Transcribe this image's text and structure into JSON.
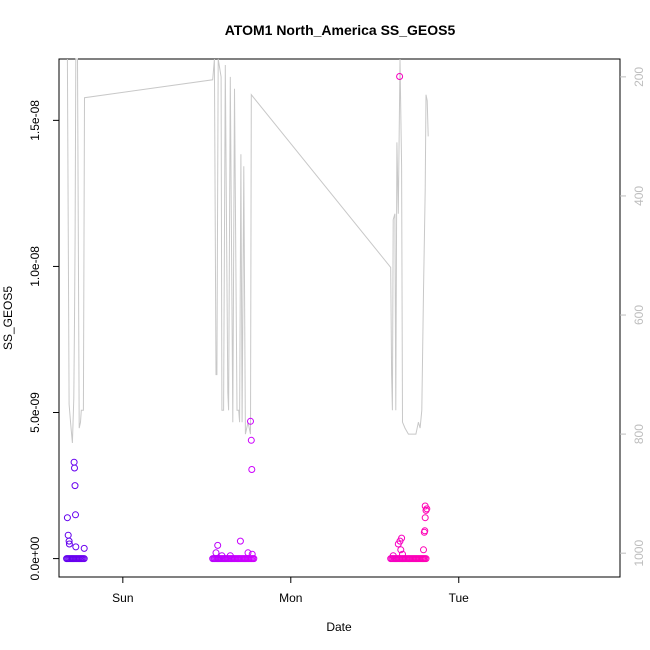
{
  "chart_data": {
    "type": "scatter",
    "title": "ATOM1 North_America SS_GEOS5",
    "xlabel": "Date",
    "ylabel": "SS_GEOS5",
    "x_tick_labels": [
      "Sun",
      "Mon",
      "Tue"
    ],
    "y_tick_labels": [
      "0.0e+00",
      "5.0e-09",
      "1.0e-08",
      "1.5e-08"
    ],
    "y_ticks": [
      0,
      5e-09,
      1e-08,
      1.5e-08
    ],
    "y2_tick_labels": [
      "200",
      "400",
      "600",
      "800",
      "1000"
    ],
    "y2_ticks": [
      200,
      400,
      600,
      800,
      1000
    ],
    "xlim": [
      -0.38,
      2.96
    ],
    "ylim": [
      -6.3e-10,
      1.71e-08
    ],
    "y2lim": [
      1040,
      170
    ],
    "grid": false,
    "series": [
      {
        "kind": "points",
        "color_gradient": [
          "#6200ee",
          "#cc00ff",
          "#ff00b4"
        ],
        "points": [
          {
            "x": -0.33,
            "y": 1.4e-09
          },
          {
            "x": -0.325,
            "y": 8e-10
          },
          {
            "x": -0.32,
            "y": 6e-10
          },
          {
            "x": -0.318,
            "y": 5e-10
          },
          {
            "x": -0.29,
            "y": 3.3e-09
          },
          {
            "x": -0.288,
            "y": 3.1e-09
          },
          {
            "x": -0.285,
            "y": 2.5e-09
          },
          {
            "x": -0.282,
            "y": 1.5e-09
          },
          {
            "x": -0.28,
            "y": 4e-10
          },
          {
            "x": -0.23,
            "y": 3.5e-10
          },
          {
            "x": 0.555,
            "y": 2e-10
          },
          {
            "x": 0.565,
            "y": 4.5e-10
          },
          {
            "x": 0.59,
            "y": 1e-10
          },
          {
            "x": 0.64,
            "y": 1e-10
          },
          {
            "x": 0.7,
            "y": 6e-10
          },
          {
            "x": 0.745,
            "y": 2e-10
          },
          {
            "x": 0.76,
            "y": 4.7e-09
          },
          {
            "x": 0.765,
            "y": 4.05e-09
          },
          {
            "x": 0.768,
            "y": 3.05e-09
          },
          {
            "x": 0.77,
            "y": 1.5e-10
          },
          {
            "x": 1.61,
            "y": 1e-10
          },
          {
            "x": 1.64,
            "y": 5e-10
          },
          {
            "x": 1.65,
            "y": 6e-10
          },
          {
            "x": 1.66,
            "y": 7e-10
          },
          {
            "x": 1.655,
            "y": 3e-10
          },
          {
            "x": 1.665,
            "y": 1.5e-10
          },
          {
            "x": 1.648,
            "y": 1.65e-08
          },
          {
            "x": 1.79,
            "y": 3e-10
          },
          {
            "x": 1.795,
            "y": 9e-10
          },
          {
            "x": 1.8,
            "y": 1.8e-09
          },
          {
            "x": 1.805,
            "y": 1.65e-09
          },
          {
            "x": 1.81,
            "y": 1.7e-09
          },
          {
            "x": 1.8,
            "y": 1.4e-09
          },
          {
            "x": 1.798,
            "y": 9.5e-10
          }
        ],
        "baseline_clusters": [
          {
            "x_start": -0.335,
            "x_end": -0.225,
            "y": 0
          },
          {
            "x_start": 0.535,
            "x_end": 0.78,
            "y": 0
          },
          {
            "x_start": 1.595,
            "x_end": 1.805,
            "y": 0
          }
        ]
      },
      {
        "kind": "line",
        "color": "#c8c8c8",
        "axis": "right",
        "points": [
          {
            "x": -0.33,
            "y": 170
          },
          {
            "x": -0.32,
            "y": 750
          },
          {
            "x": -0.31,
            "y": 785
          },
          {
            "x": -0.3,
            "y": 815
          },
          {
            "x": -0.292,
            "y": 740
          },
          {
            "x": -0.288,
            "y": 610
          },
          {
            "x": -0.284,
            "y": 470
          },
          {
            "x": -0.28,
            "y": 170
          },
          {
            "x": -0.27,
            "y": 170
          },
          {
            "x": -0.26,
            "y": 790
          },
          {
            "x": -0.252,
            "y": 780
          },
          {
            "x": -0.247,
            "y": 760
          },
          {
            "x": -0.235,
            "y": 760
          },
          {
            "x": -0.228,
            "y": 235
          },
          {
            "x": 0.535,
            "y": 205
          },
          {
            "x": 0.545,
            "y": 170
          },
          {
            "x": 0.555,
            "y": 700
          },
          {
            "x": 0.56,
            "y": 700
          },
          {
            "x": 0.568,
            "y": 170
          },
          {
            "x": 0.585,
            "y": 200
          },
          {
            "x": 0.59,
            "y": 760
          },
          {
            "x": 0.6,
            "y": 760
          },
          {
            "x": 0.61,
            "y": 180
          },
          {
            "x": 0.625,
            "y": 730
          },
          {
            "x": 0.63,
            "y": 760
          },
          {
            "x": 0.64,
            "y": 200
          },
          {
            "x": 0.655,
            "y": 780
          },
          {
            "x": 0.665,
            "y": 220
          },
          {
            "x": 0.68,
            "y": 760
          },
          {
            "x": 0.69,
            "y": 760
          },
          {
            "x": 0.695,
            "y": 780
          },
          {
            "x": 0.703,
            "y": 330
          },
          {
            "x": 0.71,
            "y": 780
          },
          {
            "x": 0.72,
            "y": 350
          },
          {
            "x": 0.73,
            "y": 800
          },
          {
            "x": 0.745,
            "y": 780
          },
          {
            "x": 0.76,
            "y": 800
          },
          {
            "x": 0.765,
            "y": 230
          },
          {
            "x": 1.595,
            "y": 520
          },
          {
            "x": 1.6,
            "y": 700
          },
          {
            "x": 1.605,
            "y": 760
          },
          {
            "x": 1.61,
            "y": 440
          },
          {
            "x": 1.62,
            "y": 430
          },
          {
            "x": 1.625,
            "y": 760
          },
          {
            "x": 1.632,
            "y": 310
          },
          {
            "x": 1.64,
            "y": 430
          },
          {
            "x": 1.65,
            "y": 170
          },
          {
            "x": 1.66,
            "y": 350
          },
          {
            "x": 1.665,
            "y": 780
          },
          {
            "x": 1.68,
            "y": 790
          },
          {
            "x": 1.7,
            "y": 800
          },
          {
            "x": 1.73,
            "y": 800
          },
          {
            "x": 1.745,
            "y": 800
          },
          {
            "x": 1.76,
            "y": 780
          },
          {
            "x": 1.77,
            "y": 790
          },
          {
            "x": 1.78,
            "y": 760
          },
          {
            "x": 1.79,
            "y": 560
          },
          {
            "x": 1.8,
            "y": 390
          },
          {
            "x": 1.805,
            "y": 230
          },
          {
            "x": 1.812,
            "y": 240
          },
          {
            "x": 1.818,
            "y": 300
          }
        ]
      }
    ]
  }
}
